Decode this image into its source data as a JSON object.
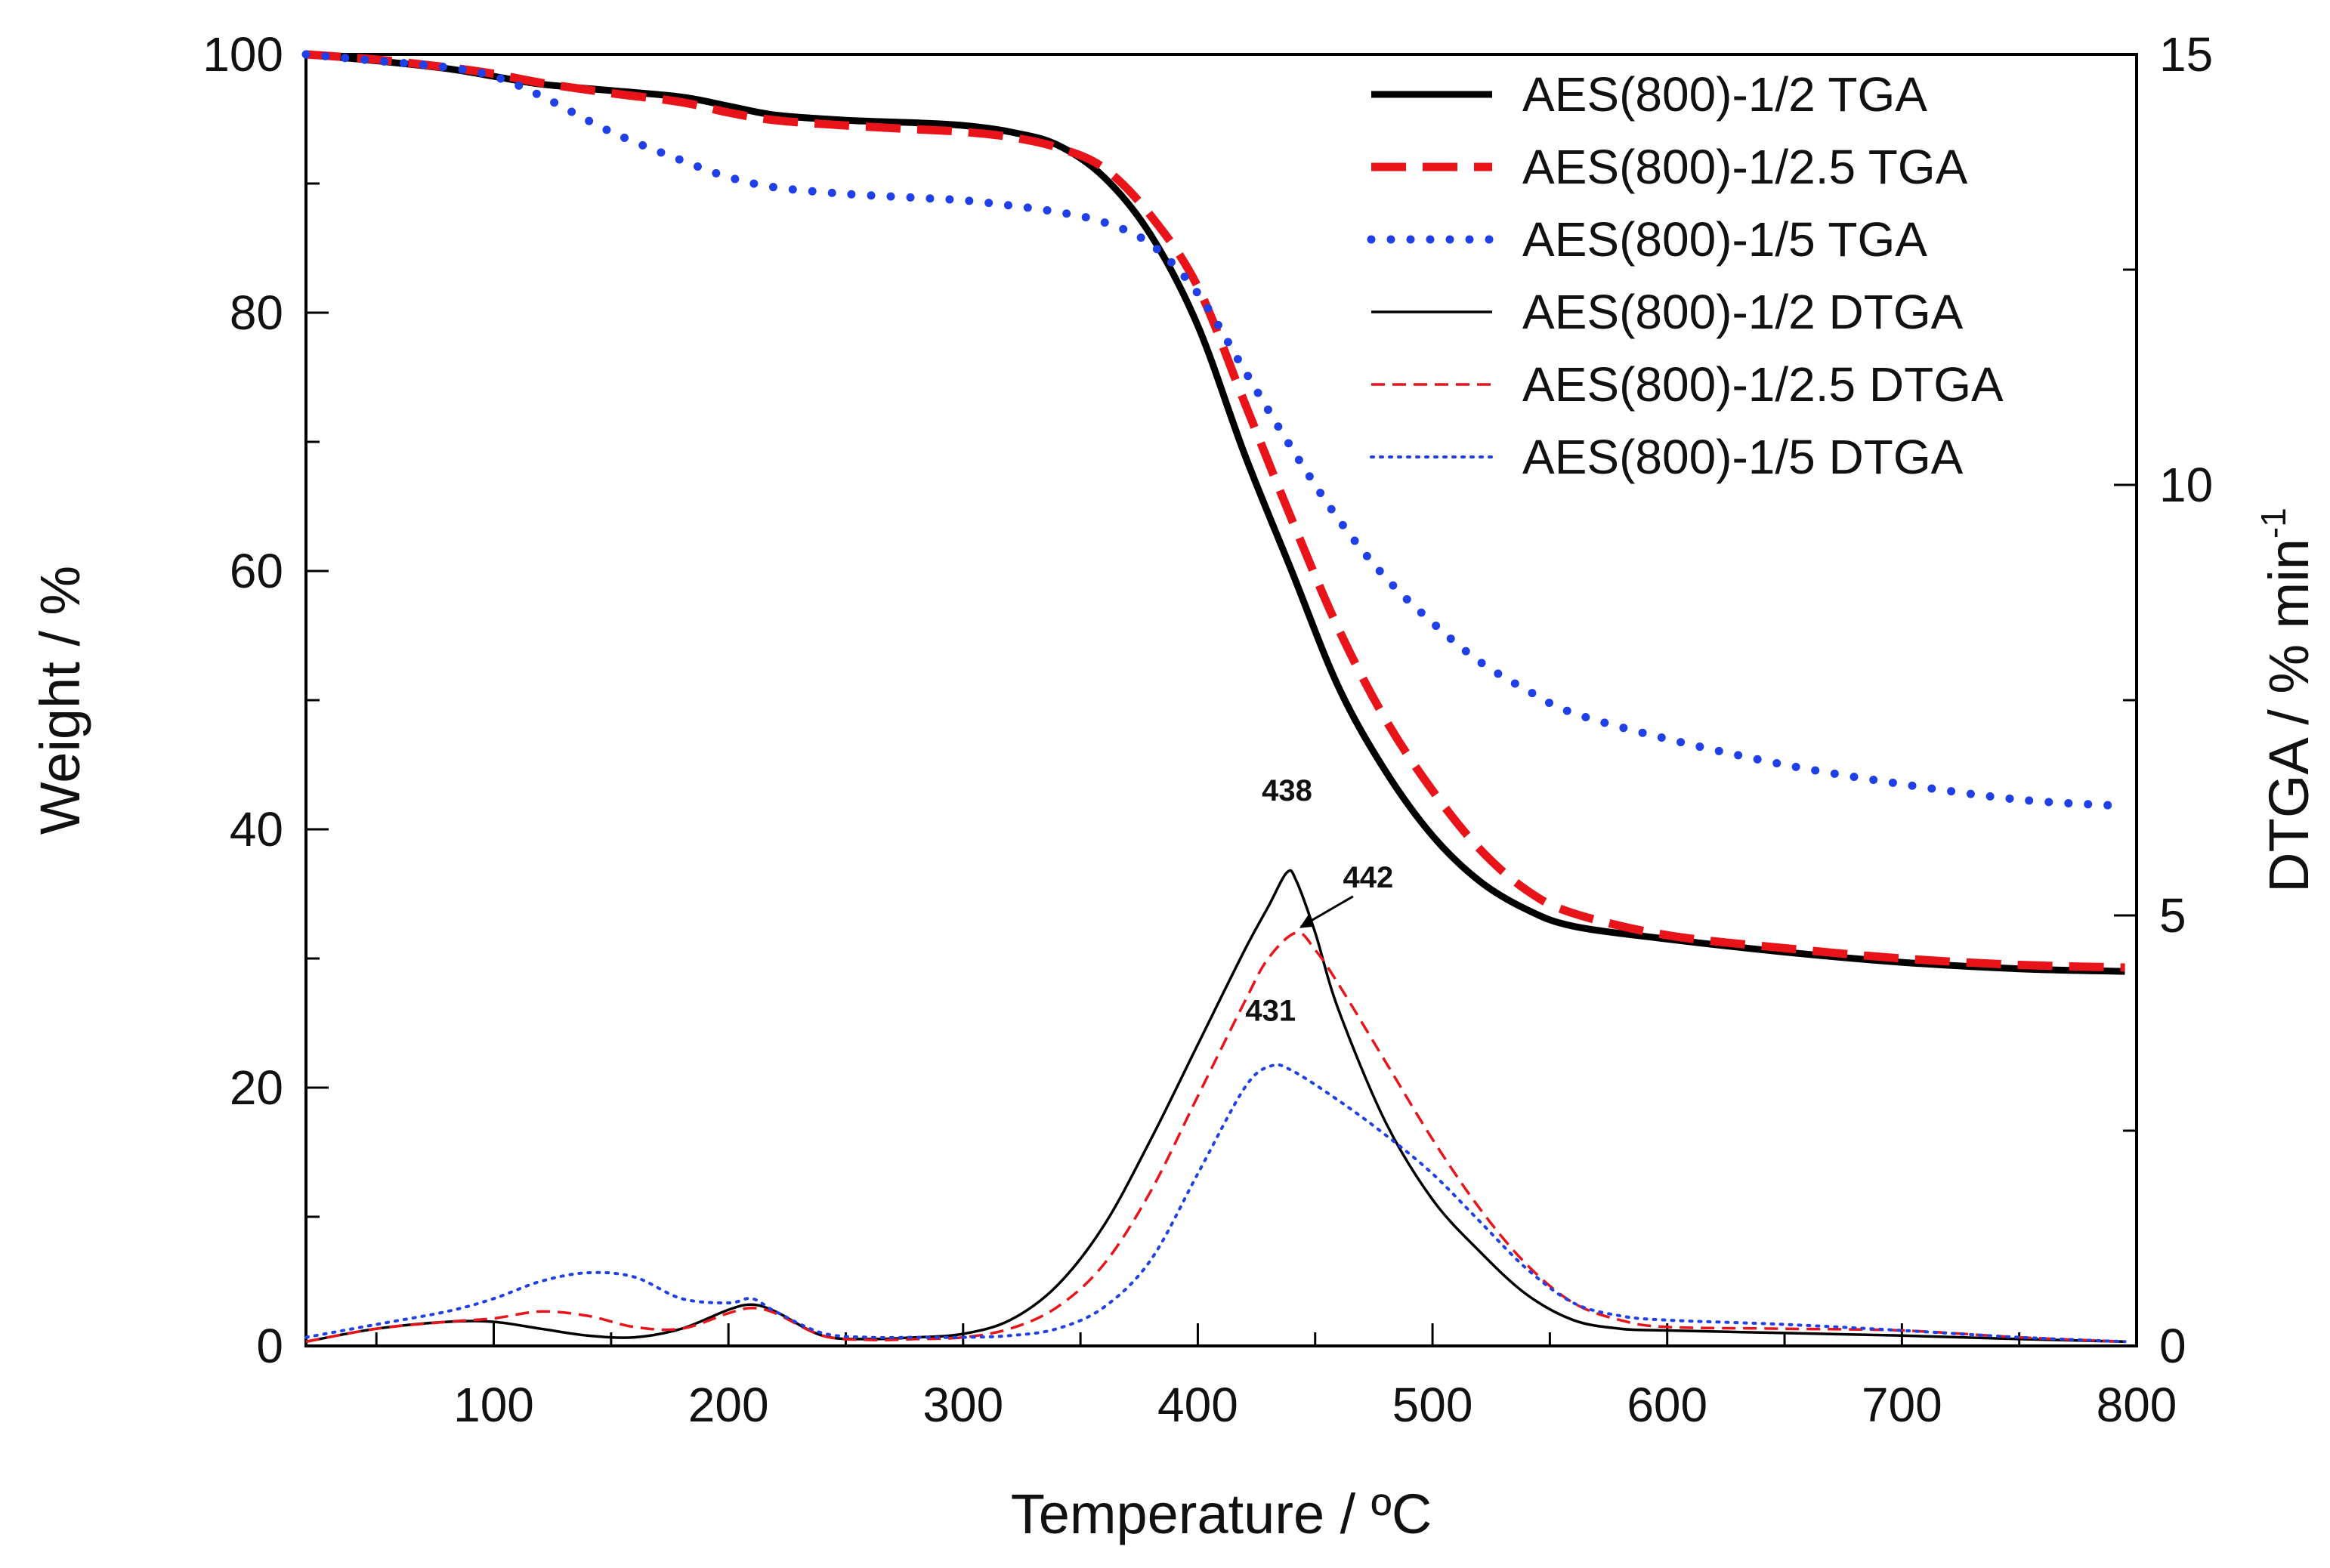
{
  "chart_data": {
    "type": "line",
    "xlabel": "Temperature / ºC",
    "ylabel_left": "Weight / %",
    "ylabel_right": "DTGA / % min",
    "ylabel_right_superscript": "-1",
    "xlim": [
      20,
      800
    ],
    "ylim_left": [
      0,
      100
    ],
    "ylim_right": [
      0,
      15
    ],
    "x_ticks": [
      100,
      200,
      300,
      400,
      500,
      600,
      700,
      800
    ],
    "x_tick_labels": [
      "100",
      "200",
      "300",
      "400",
      "500",
      "600",
      "700",
      "800"
    ],
    "y_left_ticks": [
      0,
      20,
      40,
      60,
      80,
      100
    ],
    "y_left_tick_labels": [
      "0",
      "20",
      "40",
      "60",
      "80",
      "100"
    ],
    "y_right_ticks": [
      0,
      5,
      10,
      15
    ],
    "y_right_tick_labels": [
      "0",
      "5",
      "10",
      "15"
    ],
    "legend_position": "top-right",
    "grid": false,
    "series": [
      {
        "name": "AES(800)-1/2 TGA",
        "axis": "left",
        "color": "#000000",
        "style": "solid-thick",
        "x": [
          20,
          50,
          80,
          100,
          120,
          150,
          180,
          200,
          220,
          250,
          280,
          300,
          320,
          340,
          360,
          380,
          400,
          420,
          440,
          460,
          480,
          500,
          520,
          540,
          560,
          600,
          650,
          700,
          750,
          795
        ],
        "y": [
          100,
          99.5,
          98.9,
          98.3,
          97.7,
          97.2,
          96.7,
          96.0,
          95.3,
          94.9,
          94.7,
          94.5,
          94.0,
          93.0,
          90.5,
          86,
          79,
          69,
          60,
          51,
          44.5,
          39.5,
          36,
          33.8,
          32.5,
          31.5,
          30.5,
          29.7,
          29.2,
          29
        ]
      },
      {
        "name": "AES(800)-1/2.5 TGA",
        "axis": "left",
        "color": "#e8141a",
        "style": "dashed-thick",
        "x": [
          20,
          50,
          80,
          100,
          120,
          150,
          180,
          200,
          220,
          250,
          280,
          300,
          320,
          340,
          360,
          380,
          400,
          420,
          440,
          460,
          480,
          500,
          520,
          540,
          560,
          600,
          650,
          700,
          750,
          795
        ],
        "y": [
          100,
          99.6,
          99.0,
          98.5,
          97.8,
          97.0,
          96.3,
          95.5,
          94.9,
          94.5,
          94.2,
          94.0,
          93.6,
          92.8,
          91.2,
          87.5,
          82,
          73,
          64,
          55.5,
          48.5,
          43,
          38.5,
          35.3,
          33.5,
          31.8,
          30.8,
          30.0,
          29.5,
          29.3
        ]
      },
      {
        "name": "AES(800)-1/5 TGA",
        "axis": "left",
        "color": "#1f3fe8",
        "style": "dotted-thick",
        "x": [
          20,
          50,
          80,
          100,
          120,
          150,
          180,
          200,
          220,
          250,
          280,
          300,
          320,
          340,
          360,
          380,
          400,
          420,
          440,
          460,
          480,
          500,
          520,
          540,
          560,
          600,
          650,
          700,
          750,
          795
        ],
        "y": [
          100,
          99.5,
          99.0,
          98.3,
          96.8,
          94.0,
          91.8,
          90.5,
          89.7,
          89.2,
          88.9,
          88.7,
          88.3,
          87.8,
          87.0,
          85.3,
          81.5,
          75.5,
          69.5,
          64,
          59.5,
          56,
          53,
          50.8,
          49.0,
          47.0,
          45.0,
          43.5,
          42.3,
          41.8
        ]
      },
      {
        "name": "AES(800)-1/2 DTGA",
        "axis": "right",
        "color": "#000000",
        "style": "solid-thin",
        "x": [
          20,
          50,
          80,
          100,
          120,
          140,
          160,
          180,
          200,
          210,
          220,
          240,
          260,
          280,
          300,
          320,
          340,
          360,
          380,
          400,
          420,
          430,
          438,
          442,
          450,
          460,
          480,
          500,
          520,
          540,
          560,
          580,
          600,
          650,
          700,
          750,
          795
        ],
        "y": [
          0.05,
          0.2,
          0.28,
          0.28,
          0.2,
          0.12,
          0.1,
          0.2,
          0.42,
          0.48,
          0.4,
          0.12,
          0.08,
          0.1,
          0.14,
          0.3,
          0.7,
          1.4,
          2.4,
          3.5,
          4.6,
          5.1,
          5.5,
          5.4,
          4.8,
          3.9,
          2.6,
          1.7,
          1.1,
          0.6,
          0.3,
          0.2,
          0.18,
          0.15,
          0.12,
          0.08,
          0.05
        ]
      },
      {
        "name": "AES(800)-1/2.5 DTGA",
        "axis": "right",
        "color": "#e8141a",
        "style": "dashed-thin",
        "x": [
          20,
          50,
          80,
          100,
          120,
          140,
          160,
          180,
          200,
          210,
          220,
          240,
          260,
          280,
          300,
          320,
          340,
          360,
          380,
          400,
          420,
          430,
          442,
          450,
          460,
          480,
          500,
          520,
          540,
          560,
          580,
          600,
          650,
          700,
          750,
          795
        ],
        "y": [
          0.05,
          0.2,
          0.28,
          0.32,
          0.4,
          0.35,
          0.22,
          0.2,
          0.38,
          0.44,
          0.38,
          0.12,
          0.07,
          0.08,
          0.1,
          0.2,
          0.45,
          0.95,
          1.8,
          2.9,
          4.0,
          4.5,
          4.8,
          4.6,
          4.2,
          3.3,
          2.4,
          1.6,
          0.95,
          0.5,
          0.3,
          0.22,
          0.2,
          0.18,
          0.1,
          0.05
        ]
      },
      {
        "name": "AES(800)-1/5 DTGA",
        "axis": "right",
        "color": "#1f3fe8",
        "style": "dotted-thin",
        "x": [
          20,
          50,
          80,
          100,
          120,
          140,
          160,
          180,
          200,
          210,
          220,
          240,
          260,
          280,
          300,
          320,
          340,
          360,
          380,
          400,
          420,
          431,
          440,
          460,
          480,
          500,
          520,
          540,
          560,
          580,
          600,
          650,
          700,
          750,
          795
        ],
        "y": [
          0.1,
          0.25,
          0.4,
          0.55,
          0.75,
          0.85,
          0.8,
          0.55,
          0.5,
          0.55,
          0.4,
          0.15,
          0.1,
          0.1,
          0.1,
          0.12,
          0.2,
          0.45,
          1.0,
          2.0,
          3.0,
          3.25,
          3.2,
          2.85,
          2.45,
          2.0,
          1.45,
          0.9,
          0.5,
          0.35,
          0.3,
          0.25,
          0.18,
          0.1,
          0.05
        ]
      }
    ],
    "annotations": [
      {
        "text": "438",
        "x": 438,
        "y": 5.5,
        "axis": "right"
      },
      {
        "text": "442",
        "x": 442,
        "y": 4.8,
        "axis": "right"
      },
      {
        "text": "431",
        "x": 431,
        "y": 3.25,
        "axis": "right"
      }
    ]
  }
}
